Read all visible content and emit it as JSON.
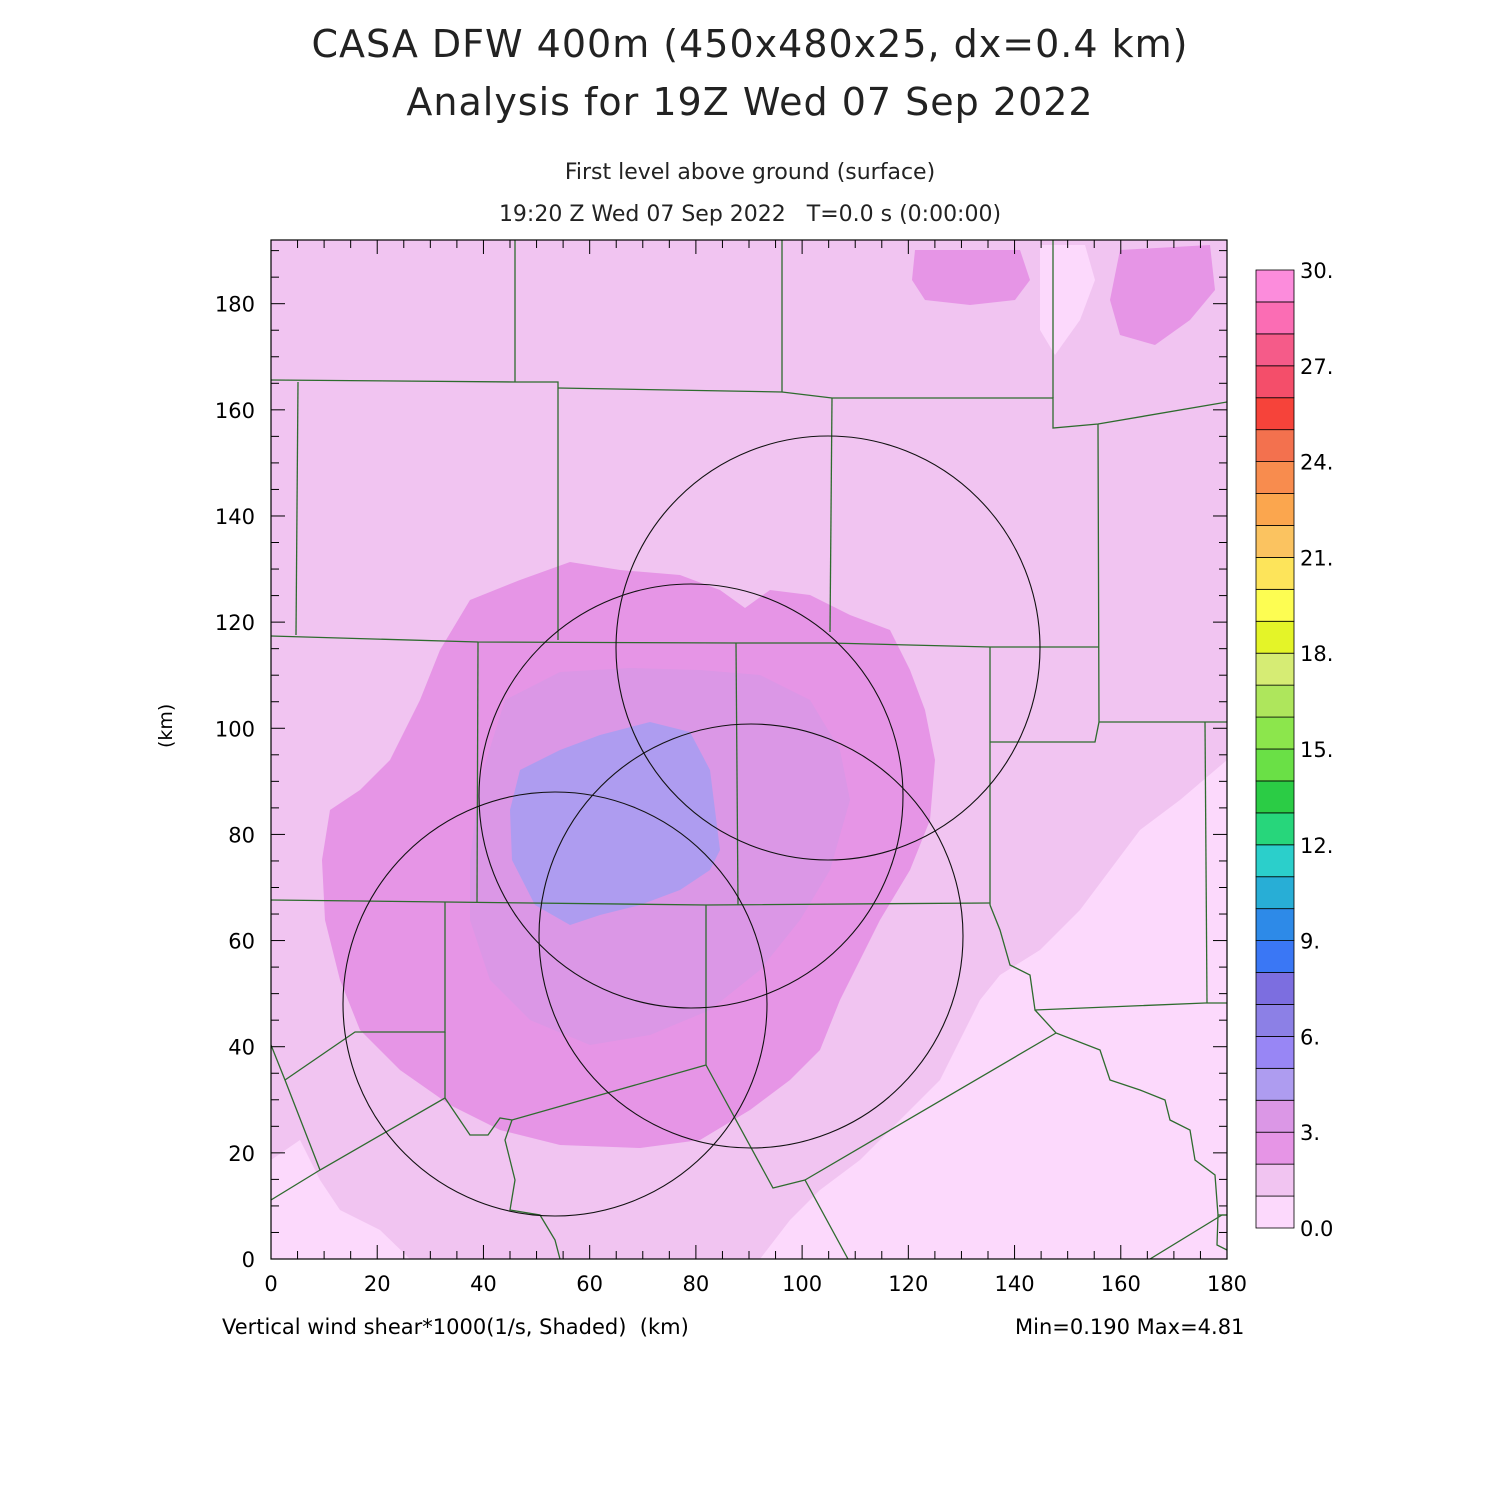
{
  "title_line1": "CASA DFW 400m (450x480x25, dx=0.4 km)",
  "title_line2": "Analysis for 19Z Wed 07 Sep 2022",
  "subtitle_level": "First level above ground (surface)",
  "subtitle_time": "19:20 Z Wed 07 Sep 2022   T=0.0 s (0:00:00)",
  "variable_label": "Vertical wind shear*1000(1/s, Shaded)  (km)",
  "axis_unit_label": "(km)",
  "minmax_label": "Min=0.190 Max=4.81",
  "x_ticks": [
    "0",
    "20",
    "40",
    "60",
    "80",
    "100",
    "120",
    "140",
    "160",
    "180"
  ],
  "y_ticks": [
    "0",
    "20",
    "40",
    "60",
    "80",
    "100",
    "120",
    "140",
    "160",
    "180"
  ],
  "colorbar": {
    "colors": [
      "#fcd9fc",
      "#f1c4f1",
      "#e695e6",
      "#db97e6",
      "#ae9cf0",
      "#9886f5",
      "#8c80e6",
      "#7c6ee0",
      "#3a77f5",
      "#2d8ae8",
      "#28aed6",
      "#2bcfcb",
      "#27d67b",
      "#2bcc45",
      "#6ae046",
      "#8ce64c",
      "#aee65c",
      "#d6ec74",
      "#e4f428",
      "#fdfd52",
      "#fde45a",
      "#fbc360",
      "#fba64e",
      "#f88c4e",
      "#f3714e",
      "#f6433a",
      "#f44e6a",
      "#f55b89",
      "#fb6db4",
      "#fc8cdc"
    ],
    "labels": [
      "0.0",
      "3.",
      "6.",
      "9.",
      "12.",
      "15.",
      "18.",
      "21.",
      "24.",
      "27.",
      "30."
    ]
  },
  "chart_data": {
    "type": "heatmap",
    "title": "CASA DFW 400m (450x480x25, dx=0.4 km)",
    "subtitle": "Analysis for 19Z Wed 07 Sep 2022",
    "xlabel": "(km)",
    "ylabel": "(km)",
    "xlim": [
      0,
      180
    ],
    "ylim": [
      0,
      192
    ],
    "variable": "Vertical wind shear*1000(1/s, Shaded)",
    "min": 0.19,
    "max": 4.81,
    "color_scale_range": [
      0,
      30
    ],
    "radar_range_rings": [
      {
        "center": [
          105,
          115
        ],
        "radius_km": 40
      },
      {
        "center": [
          79,
          87
        ],
        "radius_km": 40
      },
      {
        "center": [
          91,
          61
        ],
        "radius_km": 40
      },
      {
        "center": [
          54,
          48
        ],
        "radius_km": 40
      }
    ]
  }
}
